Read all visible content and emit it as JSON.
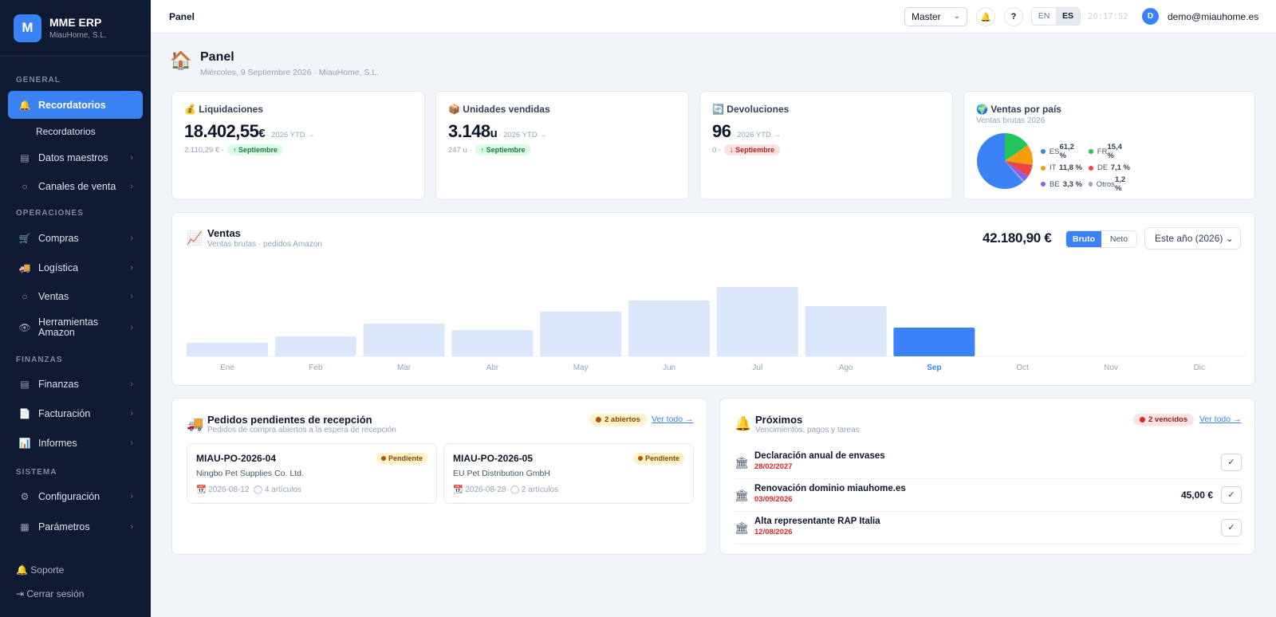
{
  "brand": {
    "logo": "M",
    "title": "MME ERP",
    "subtitle": "MiauHome, S.L."
  },
  "sidebar": {
    "sections": [
      "GENERAL",
      "OPERACIONES",
      "FINANZAS",
      "SISTEMA"
    ],
    "items": [
      {
        "label": "Recordatorios",
        "icon": "bell-icon"
      },
      {
        "label": "Datos maestros",
        "icon": "database-icon"
      },
      {
        "label": "Canales de venta",
        "icon": "circle-icon"
      },
      {
        "label": "Compras",
        "icon": "cart-icon"
      },
      {
        "label": "Logística",
        "icon": "truck-icon"
      },
      {
        "label": "Ventas",
        "icon": "circle-icon"
      },
      {
        "label": "Herramientas Amazon",
        "icon": "eye-icon"
      },
      {
        "label": "Finanzas",
        "icon": "database-icon"
      },
      {
        "label": "Facturación",
        "icon": "document-icon"
      },
      {
        "label": "Informes",
        "icon": "chart-icon"
      },
      {
        "label": "Configuración",
        "icon": "gear-icon"
      },
      {
        "label": "Parámetros",
        "icon": "grid-icon"
      }
    ],
    "subitem": "Recordatorios",
    "support": "🔔 Soporte",
    "logout": "⇥ Cerrar sesión"
  },
  "topbar": {
    "title": "Panel",
    "select_value": "Master",
    "help": "?",
    "lang": [
      "EN",
      "ES"
    ],
    "lang_active": "ES",
    "clock": "20:17:52",
    "avatar": "D",
    "email": "demo@miauhome.es"
  },
  "page": {
    "title": "Panel",
    "subtitle": "Miércoles, 9 Septiembre 2026 · MiauHome, S.L."
  },
  "kpis": [
    {
      "title": "💰 Liquidaciones",
      "value": "18.402,55",
      "unit": "€",
      "ytd": "· 2026 YTD →",
      "prev": "2.110,29 € ·",
      "badge": "↑ Septiembre",
      "trend": "up"
    },
    {
      "title": "📦 Unidades vendidas",
      "value": "3.148",
      "unit": "u",
      "ytd": "· 2026 YTD →",
      "prev": "247 u ·",
      "badge": "↑ Septiembre",
      "trend": "up"
    },
    {
      "title": "🔄 Devoluciones",
      "value": "96",
      "unit": "",
      "ytd": "· 2026 YTD →",
      "prev": "0 ·",
      "badge": "↓ Septiembre",
      "trend": "down"
    }
  ],
  "country_sales": {
    "title": "🌍 Ventas por país",
    "subtitle": "Ventas brutas 2026",
    "colors": {
      "ES": "#3b82f6",
      "FR": "#22c55e",
      "IT": "#f59e0b",
      "DE": "#ef4444",
      "BE": "#8b5cf6",
      "Otros": "#94a3b8"
    },
    "entries": [
      {
        "code": "ES",
        "value": "61,2 %",
        "pct": 61.2
      },
      {
        "code": "FR",
        "value": "15,4 %",
        "pct": 15.4
      },
      {
        "code": "IT",
        "value": "11,8 %",
        "pct": 11.8
      },
      {
        "code": "DE",
        "value": "7,1 %",
        "pct": 7.1
      },
      {
        "code": "BE",
        "value": "3,3 %",
        "pct": 3.3
      },
      {
        "code": "Otros",
        "value": "1,2 %",
        "pct": 1.2
      }
    ]
  },
  "sales": {
    "title": "Ventas",
    "subtitle": "Ventas brutas · pedidos Amazon",
    "total": "42.180,90 €",
    "toggle": [
      "Bruto",
      "Neto"
    ],
    "toggle_active": "Bruto",
    "period": "Este año (2026) ⌄"
  },
  "chart_data": {
    "type": "bar",
    "categories": [
      "Ene",
      "Feb",
      "Mar",
      "Abr",
      "May",
      "Jun",
      "Jul",
      "Ago",
      "Sep",
      "Oct",
      "Nov",
      "Dic"
    ],
    "values": [
      1700,
      2500,
      4100,
      3300,
      5600,
      7000,
      8700,
      6300,
      3600,
      0,
      0,
      0
    ],
    "highlight": "Sep",
    "ylim": [
      0,
      10000
    ],
    "colors": {
      "bar": "#dbe7fb",
      "highlight": "#3b82f6"
    }
  },
  "pending": {
    "title": "Pedidos pendientes de recepción",
    "subtitle": "Pedidos de compra abiertos a la espera de recepción",
    "badge": "2 abiertos",
    "link": "Ver todo →",
    "orders": [
      {
        "code": "MIAU-PO-2026-04",
        "status": "Pendiente",
        "supplier": "Ningbo Pet Supplies Co. Ltd.",
        "date": "📆 2026-08-12",
        "items": "◯ 4 artículos"
      },
      {
        "code": "MIAU-PO-2026-05",
        "status": "Pendiente",
        "supplier": "EU Pet Distribution GmbH",
        "date": "📆 2026-08-28",
        "items": "◯ 2 artículos"
      }
    ]
  },
  "upcoming": {
    "title": "Próximos",
    "subtitle": "Vencimientos, pagos y tareas",
    "badge": "2 vencidos",
    "link": "Ver todo →",
    "tasks": [
      {
        "title": "Declaración anual de envases",
        "date": "28/02/2027",
        "amount": ""
      },
      {
        "title": "Renovación dominio miauhome.es",
        "date": "03/09/2026",
        "amount": "45,00 €"
      },
      {
        "title": "Alta representante RAP Italia",
        "date": "12/08/2026",
        "amount": ""
      }
    ]
  }
}
